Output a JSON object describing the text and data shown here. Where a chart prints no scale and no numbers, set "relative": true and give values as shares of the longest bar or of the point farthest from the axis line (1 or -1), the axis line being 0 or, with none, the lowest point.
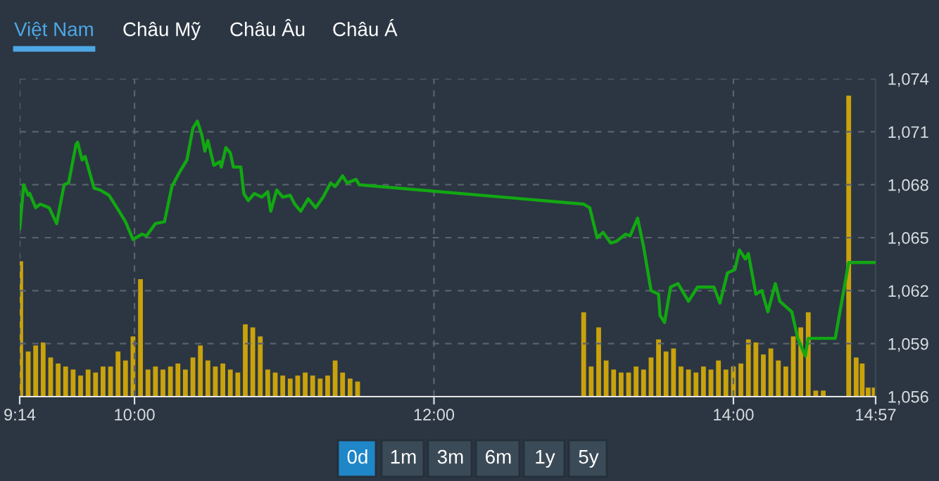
{
  "chart_data": [
    {
      "type": "line",
      "annotations": [
        "Việt Nam",
        "Châu Mỹ",
        "Châu Âu",
        "Châu Á",
        "0d",
        "1m",
        "3m",
        "6m",
        "1y",
        "5y"
      ],
      "xlim": [
        9.2333,
        14.95
      ],
      "xticks": [
        {
          "value": 9.2333,
          "label": "9:14"
        },
        {
          "value": 10,
          "label": "10:00"
        },
        {
          "value": 12,
          "label": "12:00"
        },
        {
          "value": 14,
          "label": "14:00"
        },
        {
          "value": 14.95,
          "label": "14:57"
        }
      ],
      "ylim": [
        1056,
        1074
      ],
      "yticks": [
        {
          "value": 1056,
          "label": "1,056"
        },
        {
          "value": 1059,
          "label": "1,059"
        },
        {
          "value": 1062,
          "label": "1,062"
        },
        {
          "value": 1065,
          "label": "1,065"
        },
        {
          "value": 1068,
          "label": "1,068"
        },
        {
          "value": 1071,
          "label": "1,071"
        },
        {
          "value": 1074,
          "label": "1,074"
        }
      ],
      "grid": true,
      "line_style": "solid",
      "series": [
        {
          "color": "#12a812",
          "x": [
            9.2333,
            9.26,
            9.29,
            9.3,
            9.34,
            9.37,
            9.43,
            9.48,
            9.53,
            9.56,
            9.61,
            9.62,
            9.65,
            9.67,
            9.73,
            9.77,
            9.83,
            9.89,
            9.94,
            9.99,
            10.05,
            10.08,
            10.14,
            10.2,
            10.25,
            10.3,
            10.35,
            10.39,
            10.42,
            10.45,
            10.47,
            10.49,
            10.53,
            10.57,
            10.58,
            10.61,
            10.64,
            10.66,
            10.71,
            10.73,
            10.76,
            10.8,
            10.85,
            10.89,
            10.91,
            10.95,
            10.99,
            11.04,
            11.07,
            11.11,
            11.16,
            11.21,
            11.26,
            11.31,
            11.34,
            11.39,
            11.42,
            11.48,
            11.5,
            13.0,
            13.04,
            13.09,
            13.13,
            13.18,
            13.22,
            13.28,
            13.31,
            13.36,
            13.4,
            13.45,
            13.5,
            13.51,
            13.54,
            13.58,
            13.63,
            13.7,
            13.76,
            13.82,
            13.87,
            13.91,
            13.96,
            14.01,
            14.04,
            14.08,
            14.1,
            14.15,
            14.19,
            14.23,
            14.28,
            14.31,
            14.39,
            14.43,
            14.48,
            14.5,
            14.68,
            14.77,
            14.95
          ],
          "values": [
            1065.5,
            1068.0,
            1067.4,
            1067.5,
            1066.7,
            1066.9,
            1066.7,
            1065.8,
            1068.0,
            1068.1,
            1070.3,
            1070.4,
            1069.4,
            1069.6,
            1067.8,
            1067.7,
            1067.4,
            1066.6,
            1065.9,
            1064.9,
            1065.2,
            1065.1,
            1065.8,
            1065.9,
            1067.9,
            1068.7,
            1069.4,
            1071.2,
            1071.6,
            1070.8,
            1069.9,
            1070.5,
            1069.1,
            1069.3,
            1069.0,
            1070.1,
            1069.8,
            1069.0,
            1069.0,
            1067.5,
            1067.1,
            1067.5,
            1067.3,
            1067.6,
            1066.5,
            1067.7,
            1067.3,
            1067.4,
            1066.9,
            1066.5,
            1067.2,
            1066.7,
            1067.3,
            1068.1,
            1067.9,
            1068.5,
            1068.1,
            1068.3,
            1068.0,
            1066.9,
            1066.7,
            1065.0,
            1065.3,
            1064.7,
            1064.8,
            1065.2,
            1065.1,
            1066.1,
            1064.5,
            1062.0,
            1061.8,
            1060.6,
            1060.2,
            1062.2,
            1062.4,
            1061.4,
            1062.2,
            1062.2,
            1062.2,
            1061.3,
            1063.0,
            1063.2,
            1064.3,
            1063.8,
            1064.1,
            1061.8,
            1062.0,
            1060.8,
            1062.4,
            1061.4,
            1060.8,
            1059.3,
            1058.3,
            1059.3,
            1059.3,
            1063.6,
            1063.6
          ]
        }
      ]
    },
    {
      "type": "bar",
      "relative": true,
      "xlim": [
        9.2333,
        14.95
      ],
      "series": [
        {
          "color": "#c9a20c",
          "x": [
            9.24,
            9.29,
            9.34,
            9.39,
            9.44,
            9.49,
            9.54,
            9.59,
            9.64,
            9.69,
            9.74,
            9.79,
            9.84,
            9.89,
            9.94,
            9.99,
            10.04,
            10.09,
            10.14,
            10.19,
            10.24,
            10.29,
            10.34,
            10.39,
            10.44,
            10.49,
            10.54,
            10.59,
            10.64,
            10.69,
            10.74,
            10.79,
            10.84,
            10.89,
            10.94,
            10.99,
            11.04,
            11.09,
            11.14,
            11.19,
            11.24,
            11.29,
            11.34,
            11.39,
            11.44,
            11.49,
            13.0,
            13.05,
            13.1,
            13.15,
            13.2,
            13.25,
            13.3,
            13.35,
            13.4,
            13.45,
            13.5,
            13.55,
            13.6,
            13.65,
            13.7,
            13.75,
            13.8,
            13.85,
            13.9,
            13.95,
            14.0,
            14.05,
            14.1,
            14.15,
            14.2,
            14.25,
            14.3,
            14.35,
            14.4,
            14.45,
            14.5,
            14.55,
            14.6,
            14.77,
            14.82,
            14.86,
            14.9,
            14.94
          ],
          "values": [
            0.45,
            0.15,
            0.17,
            0.18,
            0.13,
            0.11,
            0.1,
            0.09,
            0.07,
            0.09,
            0.08,
            0.1,
            0.1,
            0.15,
            0.12,
            0.2,
            0.39,
            0.09,
            0.1,
            0.09,
            0.1,
            0.11,
            0.09,
            0.13,
            0.17,
            0.12,
            0.1,
            0.11,
            0.09,
            0.08,
            0.24,
            0.23,
            0.2,
            0.09,
            0.08,
            0.07,
            0.06,
            0.07,
            0.08,
            0.07,
            0.06,
            0.07,
            0.12,
            0.08,
            0.06,
            0.05,
            0.28,
            0.1,
            0.23,
            0.12,
            0.09,
            0.08,
            0.08,
            0.1,
            0.09,
            0.13,
            0.19,
            0.15,
            0.16,
            0.1,
            0.09,
            0.08,
            0.1,
            0.09,
            0.12,
            0.09,
            0.1,
            0.11,
            0.19,
            0.18,
            0.14,
            0.16,
            0.12,
            0.1,
            0.2,
            0.23,
            0.28,
            0.02,
            0.02,
            1.0,
            0.13,
            0.11,
            0.03,
            0.03
          ]
        }
      ]
    }
  ]
}
